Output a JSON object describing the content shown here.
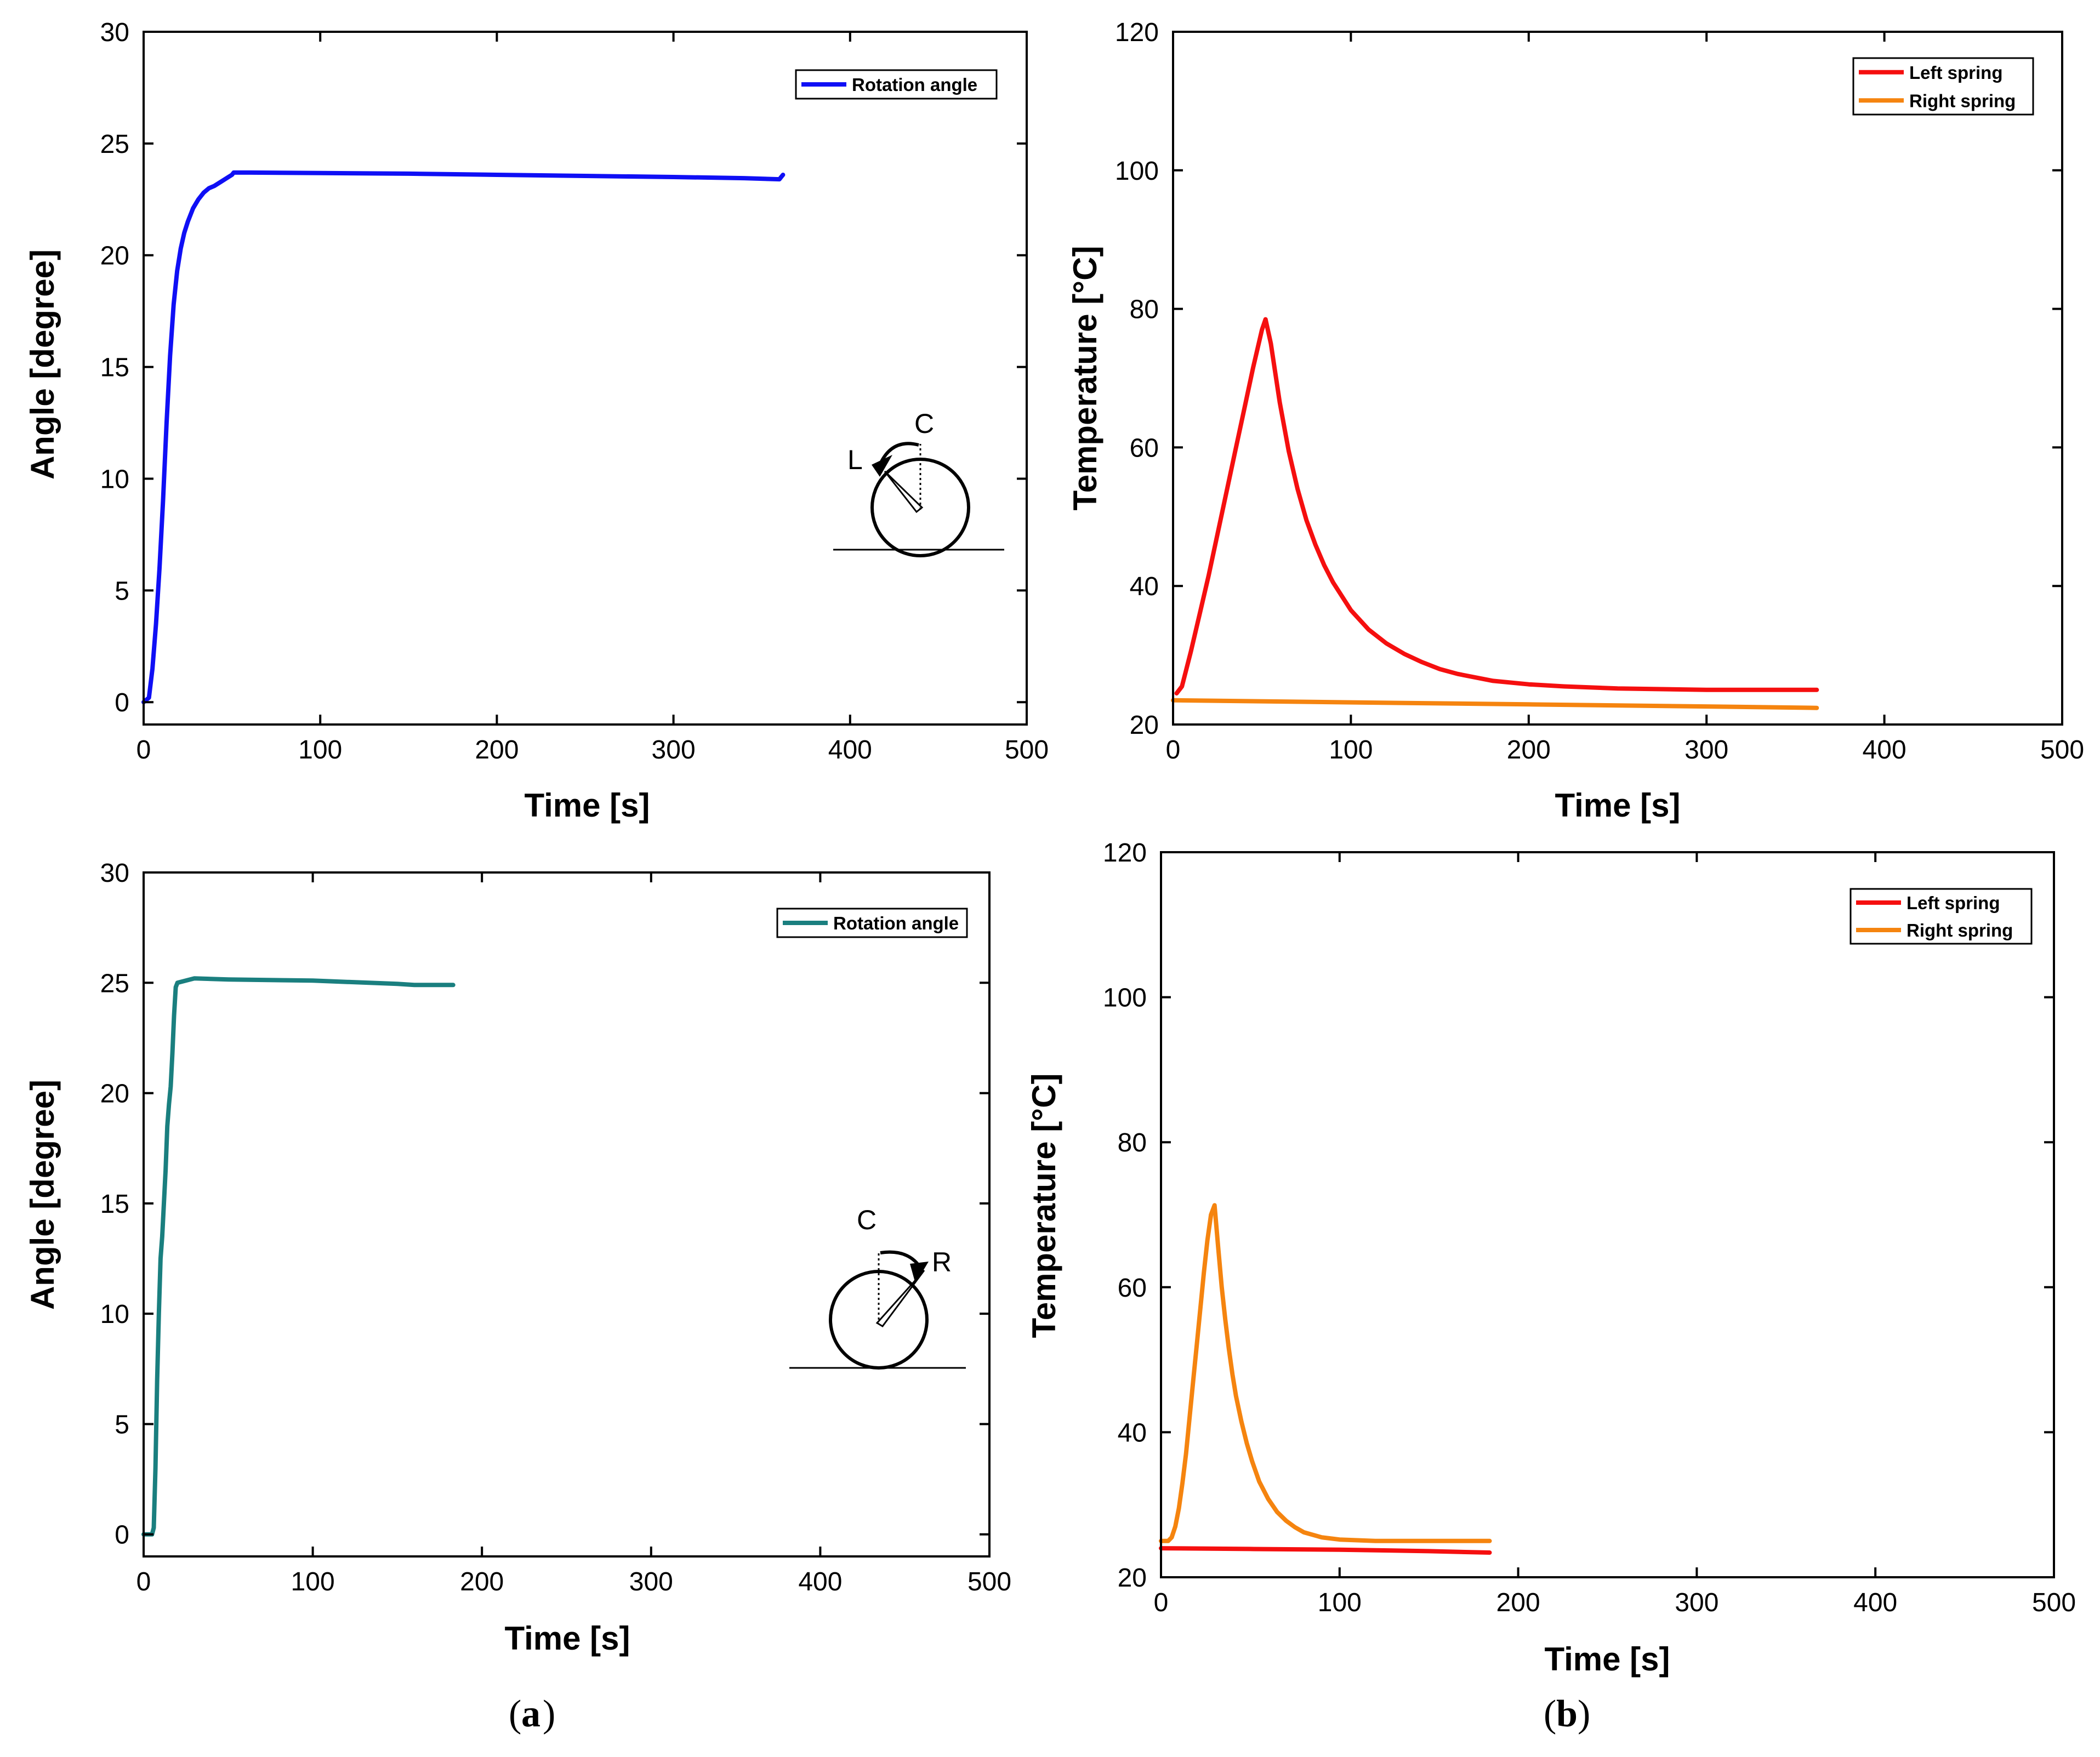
{
  "colors": {
    "blue": "#0f0ff5",
    "teal": "#1a7f7f",
    "red": "#f50f0f",
    "orange": "#f5840f"
  },
  "captions": {
    "a": "a",
    "b": "b"
  },
  "charts": [
    {
      "id": "a1",
      "ylabel": "Angle [degree]",
      "xlabel": "Time [s]",
      "inset": {
        "start": "C",
        "end": "L"
      }
    },
    {
      "id": "b1",
      "ylabel": "Temperature [°C]",
      "xlabel": "Time [s]"
    },
    {
      "id": "a2",
      "ylabel": "Angle [degree]",
      "xlabel": "Time [s]",
      "inset": {
        "start": "C",
        "end": "R"
      }
    },
    {
      "id": "b2",
      "ylabel": "Temperature [°C]",
      "xlabel": "Time [s]"
    }
  ],
  "chart_data": [
    {
      "type": "line",
      "title": "",
      "xlabel": "Time [s]",
      "ylabel": "Angle [degree]",
      "xlim": [
        0,
        500
      ],
      "ylim": [
        -1,
        30
      ],
      "xticks": [
        0,
        100,
        200,
        300,
        400,
        500
      ],
      "yticks": [
        0,
        5,
        10,
        15,
        20,
        25,
        30
      ],
      "legend_position": "top-right",
      "series": [
        {
          "name": "Rotation angle",
          "color": "#0f0ff5",
          "x": [
            0,
            3,
            5,
            7,
            9,
            11,
            13,
            15,
            17,
            19,
            21,
            23,
            25,
            28,
            31,
            34,
            37,
            40,
            44,
            48,
            50,
            51,
            60,
            100,
            150,
            200,
            250,
            300,
            340,
            360,
            361,
            362
          ],
          "y": [
            0,
            0.2,
            1.5,
            3.5,
            6,
            9,
            12.5,
            15.5,
            17.8,
            19.3,
            20.3,
            21,
            21.5,
            22.1,
            22.5,
            22.8,
            23.0,
            23.1,
            23.3,
            23.5,
            23.6,
            23.7,
            23.7,
            23.68,
            23.65,
            23.6,
            23.55,
            23.5,
            23.45,
            23.4,
            23.5,
            23.6
          ]
        }
      ]
    },
    {
      "type": "line",
      "title": "",
      "xlabel": "Time [s]",
      "ylabel": "Temperature [°C]",
      "xlim": [
        0,
        500
      ],
      "ylim": [
        20,
        120
      ],
      "xticks": [
        0,
        100,
        200,
        300,
        400,
        500
      ],
      "yticks": [
        20,
        40,
        60,
        80,
        100,
        120
      ],
      "legend_position": "top-right",
      "series": [
        {
          "name": "Left spring",
          "color": "#f50f0f",
          "x": [
            2,
            5,
            10,
            15,
            20,
            25,
            30,
            35,
            40,
            45,
            50,
            52,
            55,
            60,
            65,
            70,
            75,
            80,
            85,
            90,
            100,
            110,
            120,
            130,
            140,
            150,
            160,
            180,
            200,
            220,
            250,
            300,
            362
          ],
          "y": [
            24.5,
            25.5,
            30.5,
            36,
            41.5,
            47.5,
            53.5,
            59.5,
            65.5,
            71.5,
            77,
            78.5,
            75,
            66.5,
            59.5,
            54,
            49.5,
            46,
            43,
            40.5,
            36.5,
            33.7,
            31.7,
            30.2,
            29.0,
            28.0,
            27.3,
            26.3,
            25.8,
            25.5,
            25.2,
            25.0,
            25.0
          ]
        },
        {
          "name": "Right spring",
          "color": "#f5840f",
          "x": [
            0,
            100,
            200,
            300,
            362
          ],
          "y": [
            23.5,
            23.2,
            22.9,
            22.6,
            22.4
          ]
        }
      ]
    },
    {
      "type": "line",
      "title": "",
      "xlabel": "Time [s]",
      "ylabel": "Angle [degree]",
      "xlim": [
        0,
        500
      ],
      "ylim": [
        -1,
        30
      ],
      "xticks": [
        0,
        100,
        200,
        300,
        400,
        500
      ],
      "yticks": [
        0,
        5,
        10,
        15,
        20,
        25,
        30
      ],
      "legend_position": "top-right",
      "series": [
        {
          "name": "Rotation angle",
          "color": "#1a7f7f",
          "x": [
            0,
            5,
            6,
            7,
            8,
            9,
            10,
            11,
            12,
            13,
            14,
            15,
            16,
            17,
            18,
            19,
            20,
            25,
            30,
            50,
            100,
            150,
            160,
            170,
            183
          ],
          "y": [
            0,
            0,
            0.3,
            3,
            7,
            10,
            12.5,
            13.5,
            15,
            16.5,
            18.5,
            19.5,
            20.3,
            21.8,
            23.5,
            24.8,
            25.0,
            25.1,
            25.2,
            25.15,
            25.1,
            24.95,
            24.9,
            24.9,
            24.9
          ]
        }
      ]
    },
    {
      "type": "line",
      "title": "",
      "xlabel": "Time [s]",
      "ylabel": "Temperature [°C]",
      "xlim": [
        0,
        500
      ],
      "ylim": [
        20,
        120
      ],
      "xticks": [
        0,
        100,
        200,
        300,
        400,
        500
      ],
      "yticks": [
        20,
        40,
        60,
        80,
        100,
        120
      ],
      "legend_position": "top-right",
      "series": [
        {
          "name": "Left spring",
          "color": "#f50f0f",
          "x": [
            0,
            50,
            100,
            150,
            184
          ],
          "y": [
            24.0,
            23.9,
            23.8,
            23.6,
            23.4
          ]
        },
        {
          "name": "Right spring",
          "color": "#f5840f",
          "x": [
            0,
            4,
            6,
            8,
            10,
            12,
            14,
            16,
            18,
            20,
            22,
            24,
            26,
            28,
            30,
            32,
            34,
            36,
            38,
            40,
            42,
            45,
            48,
            51,
            55,
            60,
            65,
            70,
            75,
            80,
            90,
            100,
            120,
            150,
            184
          ],
          "y": [
            25,
            25,
            25.5,
            27,
            29.5,
            33,
            37,
            42,
            47,
            52,
            57,
            62,
            66.5,
            70,
            71.3,
            65.5,
            60,
            55.5,
            51.5,
            48,
            45,
            41.5,
            38.5,
            36,
            33.2,
            30.8,
            29.0,
            27.8,
            26.9,
            26.2,
            25.5,
            25.2,
            25.0,
            25.0,
            25.0
          ]
        }
      ]
    }
  ]
}
